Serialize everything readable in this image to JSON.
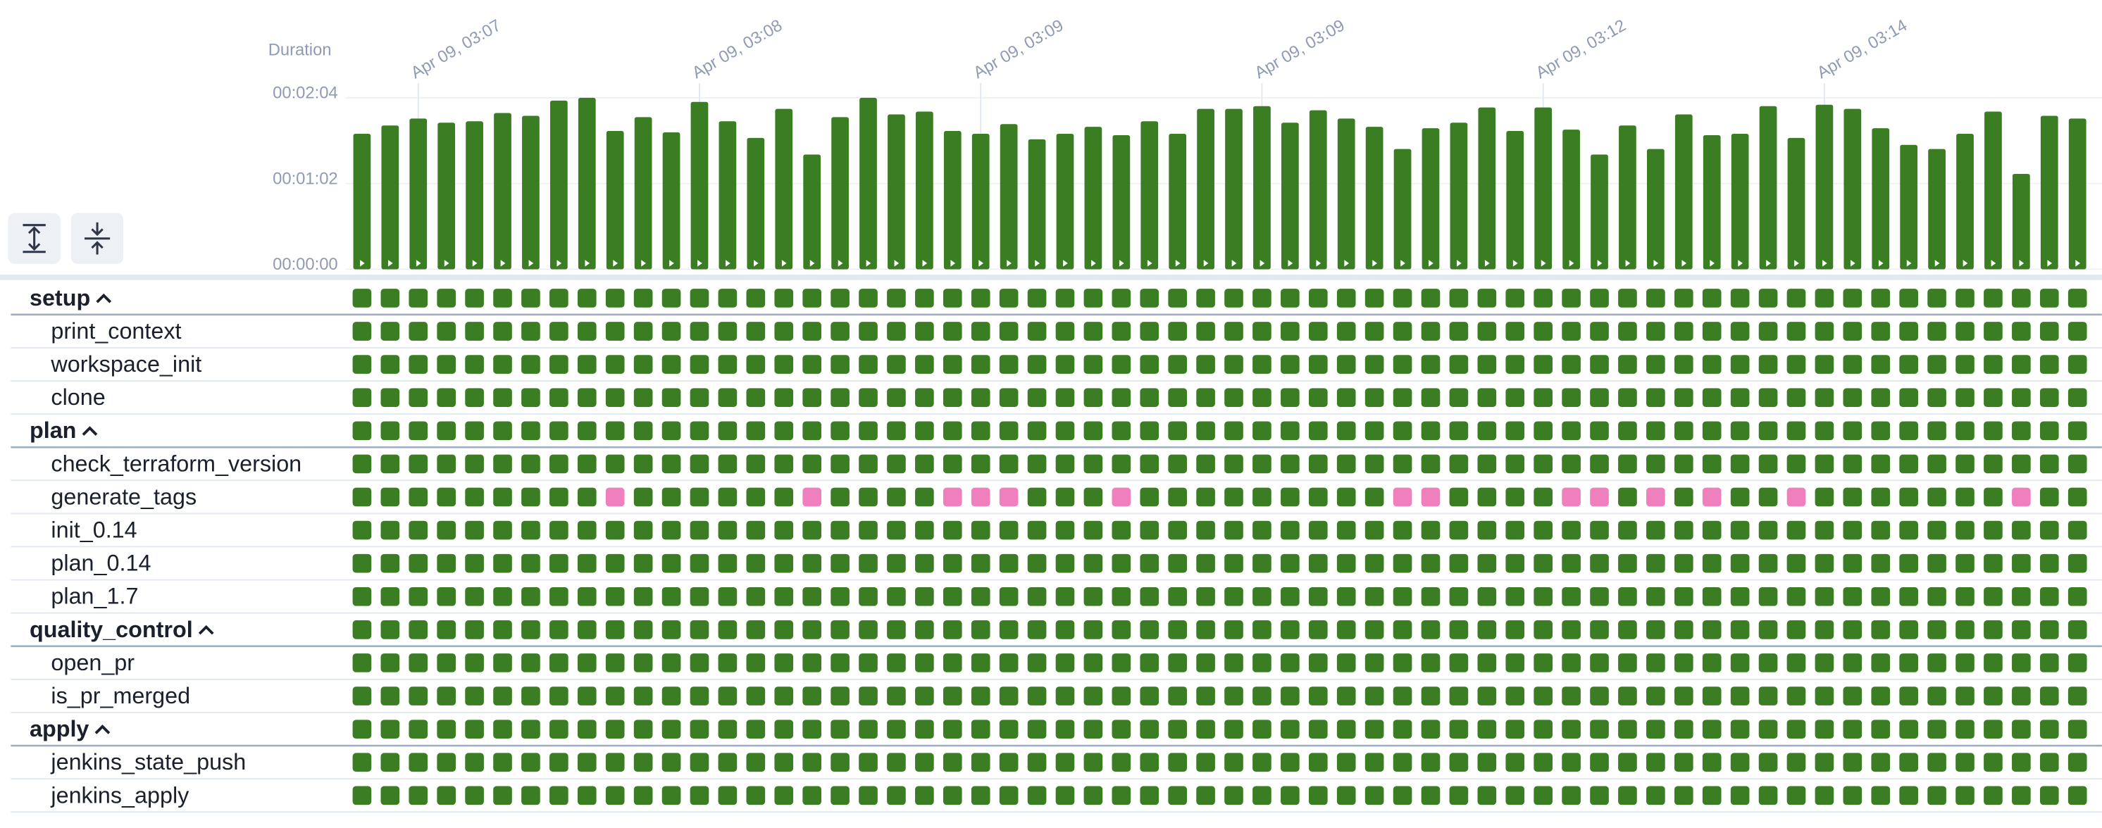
{
  "chart_data": {
    "type": "bar",
    "y_label": "Duration",
    "categories": [
      null,
      null,
      "Apr 09, 03:07",
      null,
      null,
      null,
      null,
      null,
      null,
      null,
      null,
      null,
      "Apr 09, 03:08",
      null,
      null,
      null,
      null,
      null,
      null,
      null,
      null,
      null,
      "Apr 09, 03:09",
      null,
      null,
      null,
      null,
      null,
      null,
      null,
      null,
      null,
      "Apr 09, 03:09",
      null,
      null,
      null,
      null,
      null,
      null,
      null,
      null,
      null,
      "Apr 09, 03:12",
      null,
      null,
      null,
      null,
      null,
      null,
      null,
      null,
      null,
      "Apr 09, 03:14",
      null,
      null,
      null,
      null,
      null,
      null,
      null,
      null,
      null
    ],
    "values": [
      98,
      104,
      109,
      106,
      107,
      113,
      111,
      122,
      124,
      100,
      110,
      99,
      121,
      107,
      95,
      116,
      83,
      110,
      124,
      112,
      114,
      100,
      98,
      105,
      94,
      98,
      103,
      97,
      107,
      98,
      116,
      116,
      118,
      106,
      115,
      109,
      103,
      87,
      102,
      106,
      117,
      100,
      117,
      101,
      83,
      104,
      87,
      112,
      97,
      98,
      118,
      95,
      119,
      116,
      102,
      90,
      87,
      98,
      114,
      69,
      111,
      109
    ],
    "color": "#3a7d23",
    "ylim": [
      0,
      124
    ],
    "yticks": [
      {
        "value": 0,
        "label": "00:00:00"
      },
      {
        "value": 62,
        "label": "00:01:02"
      },
      {
        "value": 124,
        "label": "00:02:04"
      }
    ],
    "grid": true
  },
  "grid": {
    "state_colors": {
      "success": "#3a7d23",
      "skipped": "#f07fbe"
    },
    "rows": [
      {
        "label": "setup",
        "group": true
      },
      {
        "label": "print_context"
      },
      {
        "label": "workspace_init"
      },
      {
        "label": "clone"
      },
      {
        "label": "plan",
        "group": true
      },
      {
        "label": "check_terraform_version"
      },
      {
        "label": "generate_tags",
        "skipped": [
          9,
          16,
          21,
          22,
          23,
          27,
          37,
          38,
          43,
          44,
          46,
          48,
          51,
          59
        ]
      },
      {
        "label": "init_0.14"
      },
      {
        "label": "plan_0.14"
      },
      {
        "label": "plan_1.7"
      },
      {
        "label": "quality_control",
        "group": true
      },
      {
        "label": "open_pr"
      },
      {
        "label": "is_pr_merged"
      },
      {
        "label": "apply",
        "group": true
      },
      {
        "label": "jenkins_state_push"
      },
      {
        "label": "jenkins_apply"
      }
    ]
  }
}
